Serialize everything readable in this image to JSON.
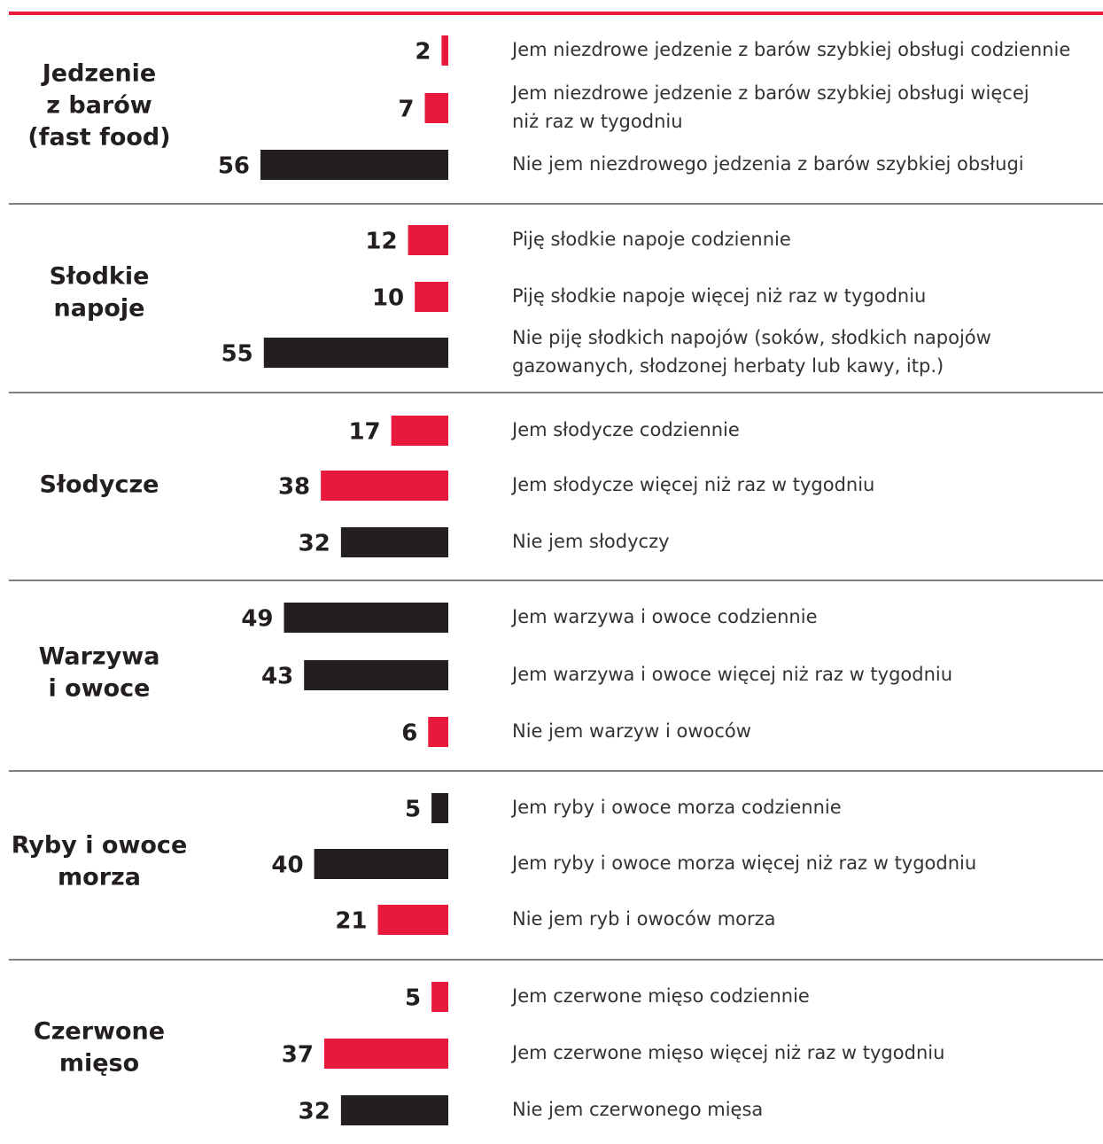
{
  "chart_data": {
    "type": "bar",
    "groups": [
      {
        "name": [
          "Jedzenie",
          "z barów",
          "(fast food)"
        ],
        "items": [
          {
            "label": [
              "Jem niezdrowe jedzenie z barów szybkiej obsługi codziennie"
            ],
            "value": 2,
            "color": "#e8193c"
          },
          {
            "label": [
              "Jem niezdrowe jedzenie z barów szybkiej obsługi więcej",
              "niż raz w tygodniu"
            ],
            "value": 7,
            "color": "#e8193c"
          },
          {
            "label": [
              "Nie jem niezdrowego jedzenia z barów szybkiej obsługi"
            ],
            "value": 56,
            "color": "#231f20"
          }
        ]
      },
      {
        "name": [
          "Słodkie",
          "napoje"
        ],
        "items": [
          {
            "label": [
              "Piję słodkie napoje codziennie"
            ],
            "value": 12,
            "color": "#e8193c"
          },
          {
            "label": [
              "Piję słodkie napoje więcej niż raz w tygodniu"
            ],
            "value": 10,
            "color": "#e8193c"
          },
          {
            "label": [
              "Nie piję słodkich napojów (soków, słodkich napojów",
              "gazowanych, słodzonej herbaty lub kawy, itp.)"
            ],
            "value": 55,
            "color": "#231f20"
          }
        ]
      },
      {
        "name": [
          "Słodycze"
        ],
        "items": [
          {
            "label": [
              "Jem słodycze codziennie"
            ],
            "value": 17,
            "color": "#e8193c"
          },
          {
            "label": [
              "Jem słodycze więcej niż raz w tygodniu"
            ],
            "value": 38,
            "color": "#e8193c"
          },
          {
            "label": [
              "Nie jem słodyczy"
            ],
            "value": 32,
            "color": "#231f20"
          }
        ]
      },
      {
        "name": [
          "Warzywa",
          "i owoce"
        ],
        "items": [
          {
            "label": [
              "Jem warzywa i owoce codziennie"
            ],
            "value": 49,
            "color": "#231f20"
          },
          {
            "label": [
              "Jem warzywa i owoce więcej niż raz w tygodniu"
            ],
            "value": 43,
            "color": "#231f20"
          },
          {
            "label": [
              "Nie jem warzyw i owoców"
            ],
            "value": 6,
            "color": "#e8193c"
          }
        ]
      },
      {
        "name": [
          "Ryby i owoce",
          "morza"
        ],
        "items": [
          {
            "label": [
              "Jem ryby i owoce morza codziennie"
            ],
            "value": 5,
            "color": "#231f20"
          },
          {
            "label": [
              "Jem ryby i owoce morza więcej niż raz w tygodniu"
            ],
            "value": 40,
            "color": "#231f20"
          },
          {
            "label": [
              "Nie jem ryb i owoców morza"
            ],
            "value": 21,
            "color": "#e8193c"
          }
        ]
      },
      {
        "name": [
          "Czerwone",
          "mięso"
        ],
        "items": [
          {
            "label": [
              "Jem czerwone mięso codziennie"
            ],
            "value": 5,
            "color": "#e8193c"
          },
          {
            "label": [
              "Jem czerwone mięso więcej niż raz w tygodniu"
            ],
            "value": 37,
            "color": "#e8193c"
          },
          {
            "label": [
              "Nie jem czerwonego mięsa"
            ],
            "value": 32,
            "color": "#231f20"
          }
        ]
      }
    ]
  }
}
